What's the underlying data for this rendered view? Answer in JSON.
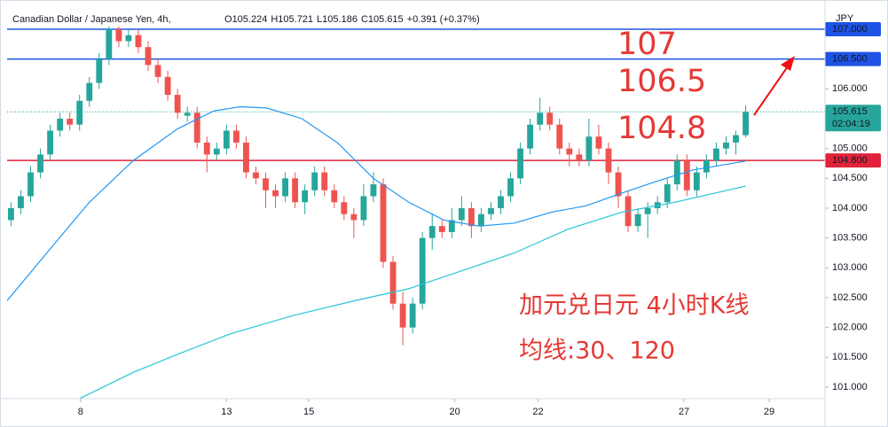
{
  "chart_data": {
    "type": "candlestick",
    "title": "Canadian Dollar / Japanese Yen, 4h,",
    "header_values": [
      {
        "label": "O",
        "value": "105.224"
      },
      {
        "label": "H",
        "value": "105.721"
      },
      {
        "label": "L",
        "value": "105.186"
      },
      {
        "label": "C",
        "value": "105.615"
      }
    ],
    "change_label": "+0.391 (+0.37%)",
    "currency": "JPY",
    "up_color": "#26a69a",
    "down_color": "#ef5350",
    "candles": [
      [
        103.8,
        104.1,
        103.7,
        104.0
      ],
      [
        104.0,
        104.3,
        103.9,
        104.2
      ],
      [
        104.2,
        104.7,
        104.1,
        104.6
      ],
      [
        104.6,
        105.0,
        104.5,
        104.9
      ],
      [
        104.9,
        105.4,
        104.8,
        105.3
      ],
      [
        105.3,
        105.6,
        105.2,
        105.5
      ],
      [
        105.5,
        105.6,
        105.3,
        105.4
      ],
      [
        105.4,
        105.9,
        105.3,
        105.8
      ],
      [
        105.8,
        106.2,
        105.7,
        106.1
      ],
      [
        106.1,
        106.6,
        106.0,
        106.5
      ],
      [
        106.5,
        107.05,
        106.4,
        107.0
      ],
      [
        107.0,
        107.05,
        106.7,
        106.8
      ],
      [
        106.8,
        107.0,
        106.7,
        106.9
      ],
      [
        106.9,
        107.0,
        106.6,
        106.7
      ],
      [
        106.7,
        106.8,
        106.3,
        106.4
      ],
      [
        106.4,
        106.5,
        106.1,
        106.2
      ],
      [
        106.2,
        106.3,
        105.8,
        105.9
      ],
      [
        105.9,
        106.0,
        105.5,
        105.6
      ],
      [
        105.55,
        105.7,
        105.45,
        105.6
      ],
      [
        105.6,
        105.7,
        105.0,
        105.1
      ],
      [
        105.1,
        105.2,
        104.6,
        104.9
      ],
      [
        104.9,
        105.1,
        104.8,
        105.0
      ],
      [
        105.0,
        105.4,
        104.9,
        105.3
      ],
      [
        105.3,
        105.4,
        105.0,
        105.1
      ],
      [
        105.1,
        105.2,
        104.5,
        104.6
      ],
      [
        104.6,
        104.7,
        104.4,
        104.5
      ],
      [
        104.5,
        104.6,
        104.0,
        104.3
      ],
      [
        104.3,
        104.4,
        104.0,
        104.2
      ],
      [
        104.2,
        104.6,
        104.1,
        104.5
      ],
      [
        104.5,
        104.6,
        104.0,
        104.1
      ],
      [
        104.1,
        104.4,
        103.9,
        104.3
      ],
      [
        104.3,
        104.7,
        104.2,
        104.6
      ],
      [
        104.6,
        104.7,
        104.2,
        104.3
      ],
      [
        104.3,
        104.4,
        104.0,
        104.1
      ],
      [
        104.1,
        104.2,
        103.8,
        103.9
      ],
      [
        103.9,
        104.0,
        103.5,
        103.8
      ],
      [
        103.8,
        104.4,
        103.7,
        104.2
      ],
      [
        104.2,
        104.6,
        104.1,
        104.4
      ],
      [
        104.4,
        104.5,
        103.0,
        103.1
      ],
      [
        103.1,
        103.2,
        102.3,
        102.4
      ],
      [
        102.4,
        102.6,
        101.7,
        102.0
      ],
      [
        102.0,
        102.5,
        101.9,
        102.4
      ],
      [
        102.4,
        103.6,
        102.3,
        103.5
      ],
      [
        103.5,
        103.9,
        103.3,
        103.7
      ],
      [
        103.7,
        103.8,
        103.5,
        103.6
      ],
      [
        103.6,
        104.0,
        103.5,
        103.8
      ],
      [
        103.8,
        104.2,
        103.7,
        104.0
      ],
      [
        104.0,
        104.1,
        103.5,
        103.7
      ],
      [
        103.7,
        104.0,
        103.6,
        103.9
      ],
      [
        103.9,
        104.1,
        103.8,
        104.0
      ],
      [
        104.0,
        104.3,
        103.9,
        104.2
      ],
      [
        104.2,
        104.6,
        104.1,
        104.5
      ],
      [
        104.5,
        105.1,
        104.4,
        105.0
      ],
      [
        105.0,
        105.5,
        104.9,
        105.4
      ],
      [
        105.4,
        105.85,
        105.3,
        105.6
      ],
      [
        105.6,
        105.7,
        105.3,
        105.4
      ],
      [
        105.4,
        105.5,
        104.9,
        105.0
      ],
      [
        105.0,
        105.1,
        104.7,
        104.9
      ],
      [
        104.9,
        105.0,
        104.7,
        104.8
      ],
      [
        104.8,
        105.5,
        104.7,
        105.2
      ],
      [
        105.2,
        105.4,
        104.9,
        105.0
      ],
      [
        105.0,
        105.1,
        104.4,
        104.6
      ],
      [
        104.6,
        104.7,
        104.0,
        104.2
      ],
      [
        104.2,
        104.3,
        103.6,
        103.7
      ],
      [
        103.7,
        104.0,
        103.6,
        103.9
      ],
      [
        103.9,
        104.1,
        103.5,
        104.0
      ],
      [
        104.0,
        104.2,
        103.9,
        104.1
      ],
      [
        104.1,
        104.5,
        104.0,
        104.4
      ],
      [
        104.4,
        104.9,
        104.3,
        104.8
      ],
      [
        104.8,
        104.9,
        104.2,
        104.3
      ],
      [
        104.3,
        104.7,
        104.2,
        104.6
      ],
      [
        104.6,
        104.9,
        104.5,
        104.8
      ],
      [
        104.8,
        105.1,
        104.7,
        105.0
      ],
      [
        105.0,
        105.2,
        104.9,
        105.1
      ],
      [
        105.1,
        105.3,
        104.9,
        105.224
      ],
      [
        105.224,
        105.721,
        105.186,
        105.615
      ]
    ],
    "series": [
      {
        "color": "#2196f3",
        "x": [
          -0.4,
          3.4,
          8,
          12.5,
          17,
          20.7,
          23.4,
          26.1,
          29.7,
          33.3,
          37,
          40.6,
          44.2,
          47.8,
          51.4,
          55.1,
          58.7,
          62.3,
          65.9,
          69.6,
          75
        ],
        "values": [
          102.45,
          103.2,
          104.1,
          104.8,
          105.33,
          105.63,
          105.7,
          105.68,
          105.5,
          105.1,
          104.5,
          104.1,
          103.8,
          103.7,
          103.75,
          103.93,
          104.04,
          104.25,
          104.45,
          104.64,
          104.79
        ]
      },
      {
        "color": "#26c6da",
        "x": [
          6.9,
          12.5,
          17,
          22.5,
          28.8,
          35.1,
          40.6,
          46,
          51.4,
          56.9,
          62.3,
          67.8,
          75
        ],
        "values": [
          100.8,
          101.25,
          101.55,
          101.9,
          102.2,
          102.45,
          102.65,
          102.95,
          103.25,
          103.65,
          103.93,
          104.1,
          104.37
        ]
      }
    ],
    "xlim": [
      -0.4,
      83.1
    ],
    "xticks": [
      {
        "value": 7.1,
        "label": "8"
      },
      {
        "value": 22,
        "label": "13"
      },
      {
        "value": 30.4,
        "label": "15"
      },
      {
        "value": 45.3,
        "label": "20"
      },
      {
        "value": 53.8,
        "label": "22"
      },
      {
        "value": 68.7,
        "label": "27"
      },
      {
        "value": 77.4,
        "label": "29"
      }
    ],
    "ylim": [
      100.807,
      107.371
    ],
    "yticks": [
      {
        "value": 101,
        "label": "101.000"
      },
      {
        "value": 101.5,
        "label": "101.500"
      },
      {
        "value": 102,
        "label": "102.000"
      },
      {
        "value": 102.5,
        "label": "102.500"
      },
      {
        "value": 103,
        "label": "103.000"
      },
      {
        "value": 103.5,
        "label": "103.500"
      },
      {
        "value": 104,
        "label": "104.000"
      },
      {
        "value": 104.5,
        "label": "104.500"
      },
      {
        "value": 105,
        "label": "105.000"
      },
      {
        "value": 105.5,
        "label": "105.500"
      },
      {
        "value": 106,
        "label": "106.000"
      },
      {
        "value": 106.5,
        "label": "106.500"
      },
      {
        "value": 107,
        "label": "107.000"
      }
    ],
    "levels": [
      {
        "value": 107,
        "label": "107.000",
        "color": "#1e53e5"
      },
      {
        "value": 106.5,
        "label": "106.500",
        "color": "#1e53e5"
      },
      {
        "value": 104.8,
        "label": "104.800",
        "color": "#e0233a"
      }
    ],
    "last_price": {
      "value": 105.615,
      "label": "105.615",
      "countdown": "02:04:19",
      "color": "#26a69a"
    },
    "annotations": [
      "107",
      "106.5",
      "104.8",
      "加元兑日元 4小时K线",
      "均线:30、120"
    ]
  }
}
